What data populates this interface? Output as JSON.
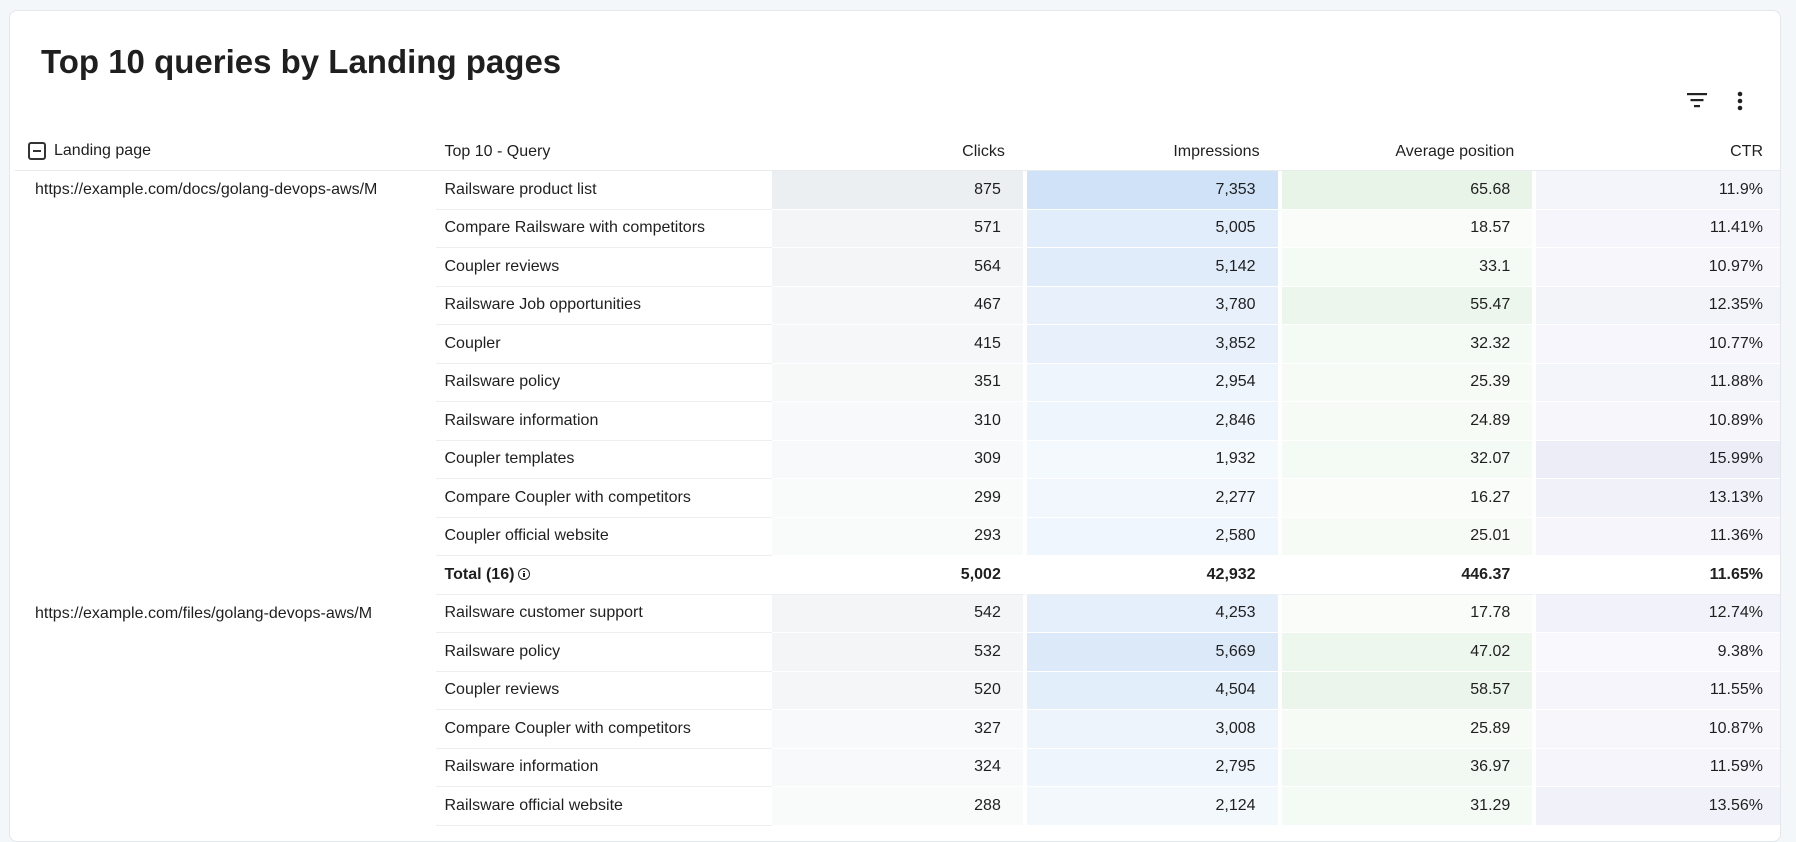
{
  "title": "Top 10 queries by Landing pages",
  "toolbar": {
    "filter_icon": "filter-icon",
    "menu_icon": "more-vert-icon"
  },
  "columns": {
    "landing_page": "Landing page",
    "query": "Top 10 - Query",
    "clicks": "Clicks",
    "impressions": "Impressions",
    "avg_position": "Average position",
    "ctr": "CTR"
  },
  "colors": {
    "clicks_base": "#eceff1",
    "impressions_base": "#cfe2f7",
    "position_base": "#e8f4e8",
    "ctr_base": "#ebebf7"
  },
  "groups": [
    {
      "landing_page": "https://example.com/docs/golang-devops-aws/M",
      "rows": [
        {
          "query": "Railsware product list",
          "clicks": "875",
          "impressions": "7,353",
          "avg_position": "65.68",
          "ctr": "11.9%",
          "clicks_shade": 1.0,
          "impr_shade": 1.0,
          "pos_shade": 1.0,
          "ctr_shade": 0.55
        },
        {
          "query": "Compare Railsware with competitors",
          "clicks": "571",
          "impressions": "5,005",
          "avg_position": "18.57",
          "ctr": "11.41%",
          "clicks_shade": 0.65,
          "impr_shade": 0.62,
          "pos_shade": 0.28,
          "ctr_shade": 0.5
        },
        {
          "query": "Coupler reviews",
          "clicks": "564",
          "impressions": "5,142",
          "avg_position": "33.1",
          "ctr": "10.97%",
          "clicks_shade": 0.64,
          "impr_shade": 0.65,
          "pos_shade": 0.5,
          "ctr_shade": 0.45
        },
        {
          "query": "Railsware Job opportunities",
          "clicks": "467",
          "impressions": "3,780",
          "avg_position": "55.47",
          "ctr": "12.35%",
          "clicks_shade": 0.53,
          "impr_shade": 0.47,
          "pos_shade": 0.84,
          "ctr_shade": 0.6
        },
        {
          "query": "Coupler",
          "clicks": "415",
          "impressions": "3,852",
          "avg_position": "32.32",
          "ctr": "10.77%",
          "clicks_shade": 0.47,
          "impr_shade": 0.48,
          "pos_shade": 0.49,
          "ctr_shade": 0.43
        },
        {
          "query": "Railsware policy",
          "clicks": "351",
          "impressions": "2,954",
          "avg_position": "25.39",
          "ctr": "11.88%",
          "clicks_shade": 0.4,
          "impr_shade": 0.36,
          "pos_shade": 0.38,
          "ctr_shade": 0.55
        },
        {
          "query": "Railsware information",
          "clicks": "310",
          "impressions": "2,846",
          "avg_position": "24.89",
          "ctr": "10.89%",
          "clicks_shade": 0.35,
          "impr_shade": 0.35,
          "pos_shade": 0.37,
          "ctr_shade": 0.44
        },
        {
          "query": "Coupler templates",
          "clicks": "309",
          "impressions": "1,932",
          "avg_position": "32.07",
          "ctr": "15.99%",
          "clicks_shade": 0.35,
          "impr_shade": 0.22,
          "pos_shade": 0.48,
          "ctr_shade": 0.9
        },
        {
          "query": "Compare Coupler with competitors",
          "clicks": "299",
          "impressions": "2,277",
          "avg_position": "16.27",
          "ctr": "13.13%",
          "clicks_shade": 0.34,
          "impr_shade": 0.27,
          "pos_shade": 0.24,
          "ctr_shade": 0.68
        },
        {
          "query": "Coupler official website",
          "clicks": "293",
          "impressions": "2,580",
          "avg_position": "25.01",
          "ctr": "11.36%",
          "clicks_shade": 0.33,
          "impr_shade": 0.31,
          "pos_shade": 0.38,
          "ctr_shade": 0.5
        }
      ],
      "total": {
        "label": "Total (16)",
        "clicks": "5,002",
        "impressions": "42,932",
        "avg_position": "446.37",
        "ctr": "11.65%"
      }
    },
    {
      "landing_page": "https://example.com/files/golang-devops-aws/M",
      "rows": [
        {
          "query": "Railsware customer support",
          "clicks": "542",
          "impressions": "4,253",
          "avg_position": "17.78",
          "ctr": "12.74%",
          "clicks_shade": 0.62,
          "impr_shade": 0.55,
          "pos_shade": 0.26,
          "ctr_shade": 0.65
        },
        {
          "query": "Railsware policy",
          "clicks": "532",
          "impressions": "5,669",
          "avg_position": "47.02",
          "ctr": "9.38%",
          "clicks_shade": 0.6,
          "impr_shade": 0.75,
          "pos_shade": 0.72,
          "ctr_shade": 0.3
        },
        {
          "query": "Coupler reviews",
          "clicks": "520",
          "impressions": "4,504",
          "avg_position": "58.57",
          "ctr": "11.55%",
          "clicks_shade": 0.59,
          "impr_shade": 0.6,
          "pos_shade": 0.89,
          "ctr_shade": 0.52
        },
        {
          "query": "Compare Coupler with competitors",
          "clicks": "327",
          "impressions": "3,008",
          "avg_position": "25.89",
          "ctr": "10.87%",
          "clicks_shade": 0.37,
          "impr_shade": 0.38,
          "pos_shade": 0.39,
          "ctr_shade": 0.44
        },
        {
          "query": "Railsware information",
          "clicks": "324",
          "impressions": "2,795",
          "avg_position": "36.97",
          "ctr": "11.59%",
          "clicks_shade": 0.37,
          "impr_shade": 0.34,
          "pos_shade": 0.56,
          "ctr_shade": 0.52
        },
        {
          "query": "Railsware official website",
          "clicks": "288",
          "impressions": "2,124",
          "avg_position": "31.29",
          "ctr": "13.56%",
          "clicks_shade": 0.33,
          "impr_shade": 0.25,
          "pos_shade": 0.47,
          "ctr_shade": 0.72
        }
      ]
    }
  ]
}
